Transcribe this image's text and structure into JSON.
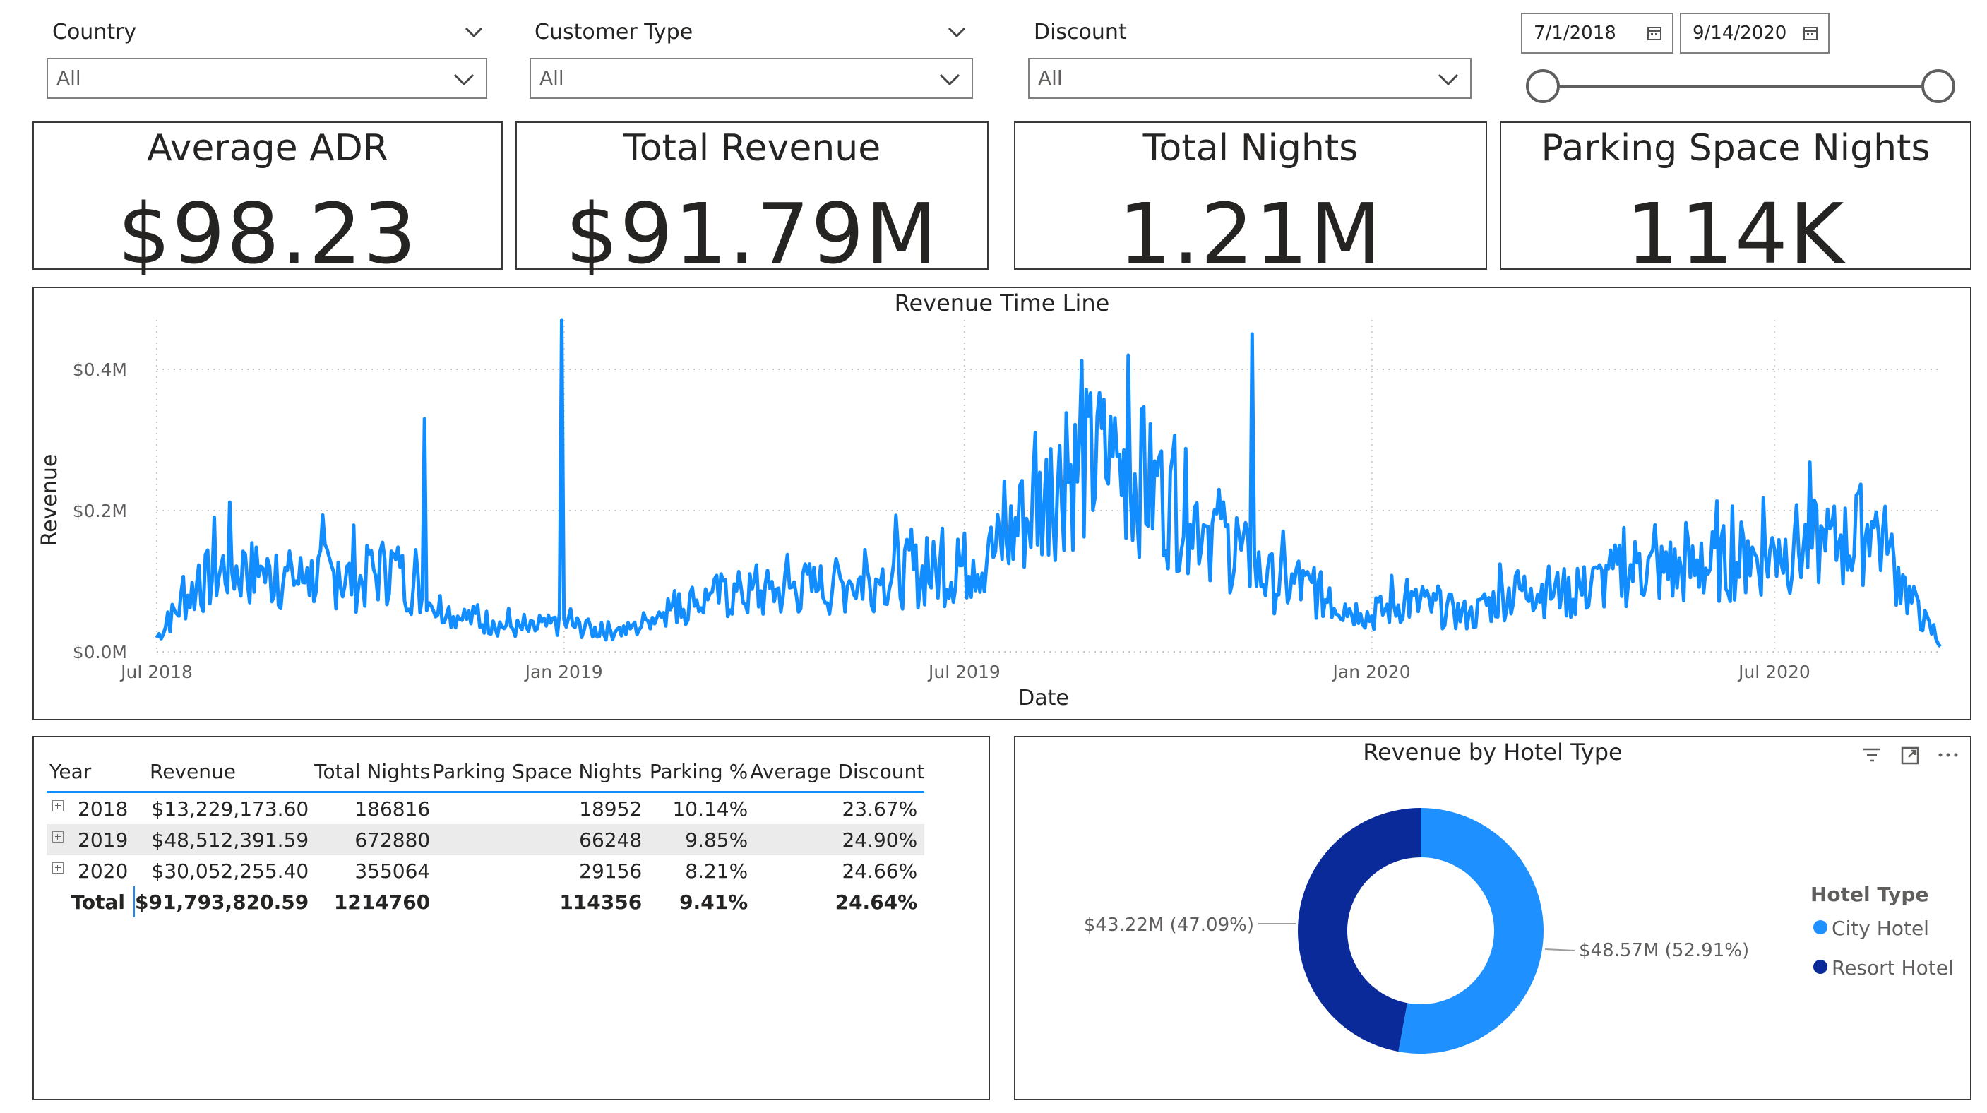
{
  "filters": {
    "country": {
      "label": "Country",
      "value": "All"
    },
    "customer_type": {
      "label": "Customer Type",
      "value": "All"
    },
    "discount": {
      "label": "Discount",
      "value": "All"
    }
  },
  "date_range": {
    "start": "7/1/2018",
    "end": "9/14/2020"
  },
  "kpis": [
    {
      "title": "Average ADR",
      "value": "$98.23"
    },
    {
      "title": "Total Revenue",
      "value": "$91.79M"
    },
    {
      "title": "Total Nights",
      "value": "1.21M"
    },
    {
      "title": "Parking Space Nights",
      "value": "114K"
    }
  ],
  "timeline": {
    "title": "Revenue Time Line",
    "xlabel": "Date",
    "ylabel": "Revenue",
    "x_ticks": [
      "Jul 2018",
      "Jan 2019",
      "Jul 2019",
      "Jan 2020",
      "Jul 2020"
    ],
    "y_ticks": [
      "$0.0M",
      "$0.2M",
      "$0.4M"
    ]
  },
  "matrix": {
    "headers": [
      "Year",
      "Revenue",
      "Total Nights",
      "Parking Space Nights",
      "Parking %",
      "Average Discount"
    ],
    "rows": [
      [
        "2018",
        "$13,229,173.60",
        "186816",
        "18952",
        "10.14%",
        "23.67%"
      ],
      [
        "2019",
        "$48,512,391.59",
        "672880",
        "66248",
        "9.85%",
        "24.90%"
      ],
      [
        "2020",
        "$30,052,255.40",
        "355064",
        "29156",
        "8.21%",
        "24.66%"
      ]
    ],
    "total": [
      "Total",
      "$91,793,820.59",
      "1214760",
      "114356",
      "9.41%",
      "24.64%"
    ]
  },
  "donut": {
    "title": "Revenue by Hotel Type",
    "legend_title": "Hotel Type",
    "labels": {
      "resort": "$43.22M (47.09%)",
      "city": "$48.57M (52.91%)"
    },
    "legend": [
      "City Hotel",
      "Resort Hotel"
    ]
  },
  "colors": {
    "line": "#118dff",
    "city": "#1e90ff",
    "resort": "#0b2a9a"
  },
  "chart_data": [
    {
      "type": "line",
      "title": "Revenue Time Line",
      "xlabel": "Date",
      "ylabel": "Revenue",
      "x_range": [
        "2018-07-01",
        "2020-09-14"
      ],
      "ylim": [
        0,
        0.47
      ],
      "y_unit": "$M",
      "grid": true,
      "series": [
        {
          "x": [
            "2018-07-01",
            "2018-07-15",
            "2018-08-01",
            "2018-08-15",
            "2018-09-01",
            "2018-09-15",
            "2018-10-01",
            "2018-10-15",
            "2018-11-01",
            "2018-11-15",
            "2018-12-01",
            "2018-12-15",
            "2019-01-01",
            "2019-01-15",
            "2019-02-01",
            "2019-02-15",
            "2019-03-01",
            "2019-03-15",
            "2019-04-01",
            "2019-04-15",
            "2019-05-01",
            "2019-05-15",
            "2019-06-01",
            "2019-06-15",
            "2019-07-01",
            "2019-07-15",
            "2019-08-01",
            "2019-08-15",
            "2019-09-01",
            "2019-09-15",
            "2019-10-01",
            "2019-10-15",
            "2019-11-01",
            "2019-11-15",
            "2019-12-01",
            "2019-12-15",
            "2020-01-01",
            "2020-01-15",
            "2020-02-01",
            "2020-02-15",
            "2020-03-01",
            "2020-03-15",
            "2020-04-01",
            "2020-04-15",
            "2020-05-01",
            "2020-05-15",
            "2020-06-01",
            "2020-06-15",
            "2020-07-01",
            "2020-07-15",
            "2020-08-01",
            "2020-08-15",
            "2020-09-01",
            "2020-09-14"
          ],
          "values": [
            0.02,
            0.08,
            0.12,
            0.11,
            0.1,
            0.11,
            0.1,
            0.12,
            0.07,
            0.05,
            0.04,
            0.03,
            0.04,
            0.03,
            0.03,
            0.06,
            0.07,
            0.08,
            0.08,
            0.09,
            0.09,
            0.1,
            0.11,
            0.11,
            0.12,
            0.14,
            0.2,
            0.25,
            0.27,
            0.25,
            0.21,
            0.19,
            0.14,
            0.1,
            0.09,
            0.07,
            0.05,
            0.07,
            0.06,
            0.05,
            0.08,
            0.09,
            0.08,
            0.1,
            0.12,
            0.11,
            0.12,
            0.13,
            0.14,
            0.15,
            0.15,
            0.18,
            0.07,
            0.01
          ]
        }
      ],
      "peaks": [
        {
          "x": "2018-12-31",
          "y": 0.47
        },
        {
          "x": "2018-10-30",
          "y": 0.33
        },
        {
          "x": "2019-11-08",
          "y": 0.45
        },
        {
          "x": "2019-09-13",
          "y": 0.42
        }
      ]
    },
    {
      "type": "pie",
      "title": "Revenue by Hotel Type",
      "categories": [
        "City Hotel",
        "Resort Hotel"
      ],
      "values": [
        48.57,
        43.22
      ],
      "percent": [
        52.91,
        47.09
      ],
      "unit": "$M"
    }
  ]
}
